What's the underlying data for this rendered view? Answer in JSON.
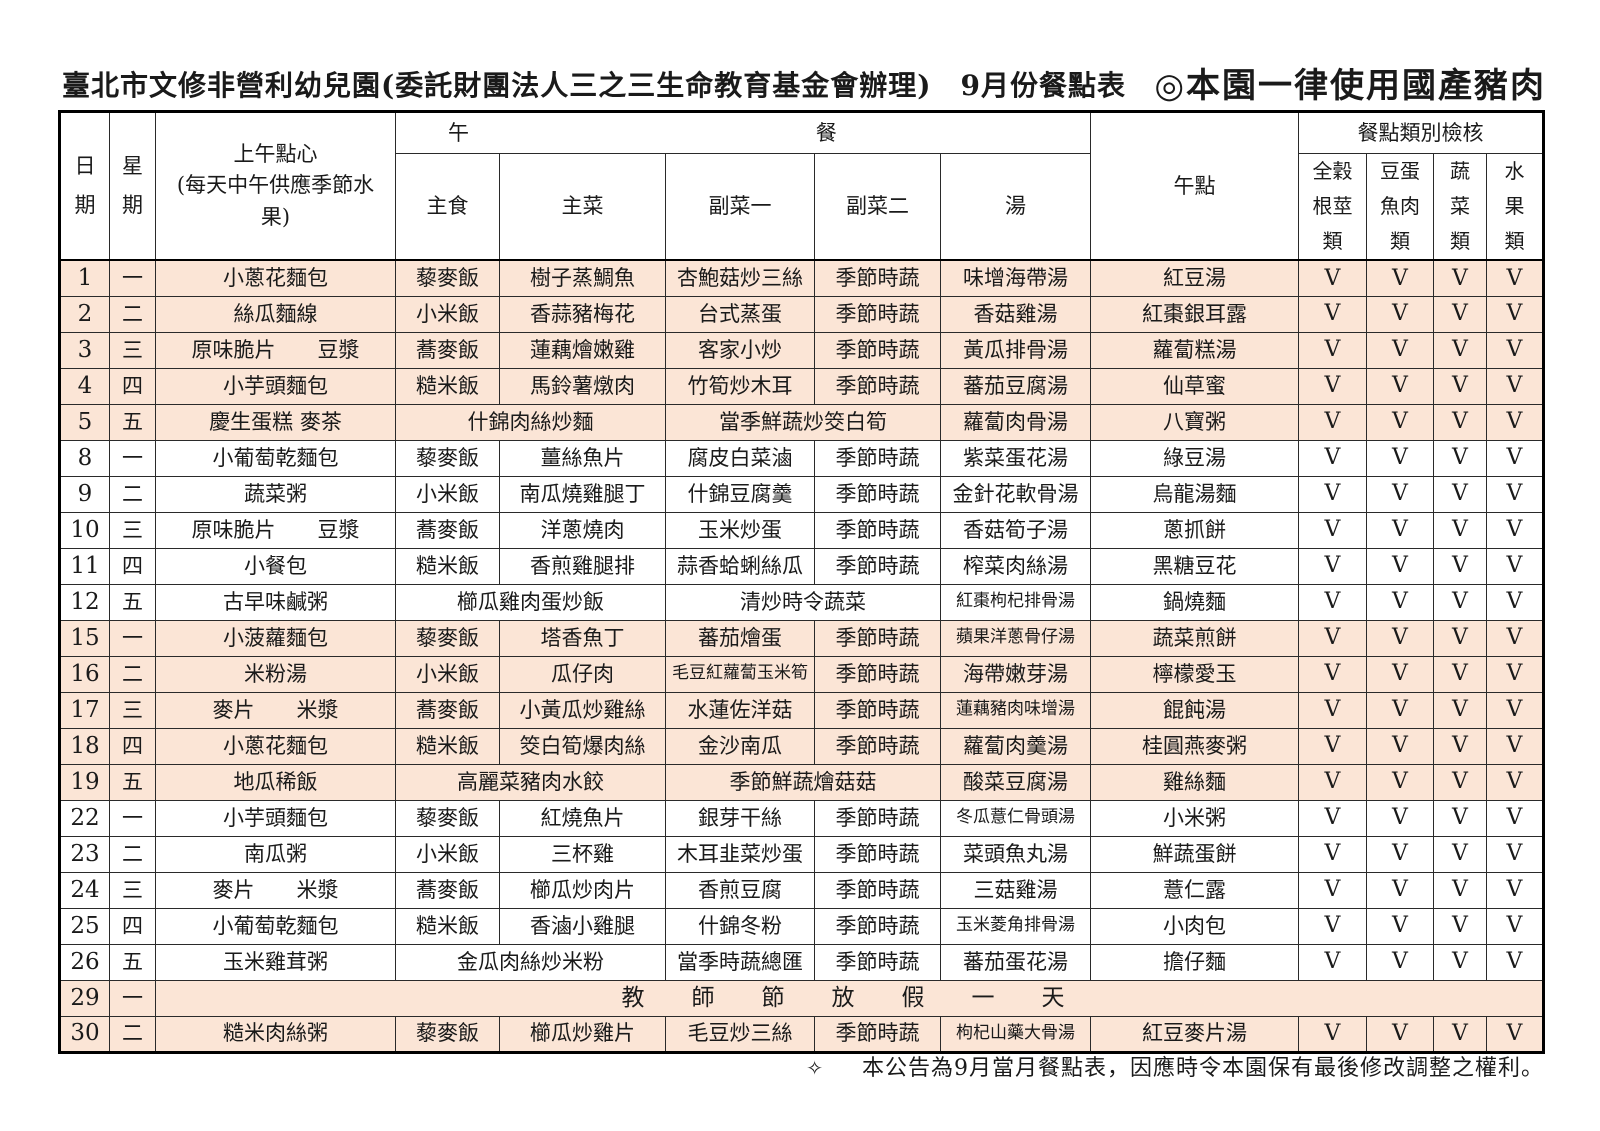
{
  "page": {
    "title_left": "臺北市文修非營利幼兒園(委託財團法人三之三生命教育基金會辦理)　9月份餐點表",
    "title_right": "◎本園一律使用國產豬肉",
    "footer_marker": "✧",
    "footer_note": "本公告為9月當月餐點表，因應時令本園保有最後修改調整之權利。"
  },
  "header": {
    "date": "日期",
    "weekday": "星期",
    "snack_line1": "上午點心",
    "snack_line2": "(每天中午供應季節水果)",
    "lunch_char1": "午",
    "lunch_char2": "餐",
    "staple": "主食",
    "main": "主菜",
    "side1": "副菜一",
    "side2": "副菜二",
    "soup": "湯",
    "dessert": "午點",
    "check_group": "餐點類別檢核",
    "check_cols": [
      "全穀根莖類",
      "豆蛋魚肉類",
      "蔬菜類",
      "水果類"
    ]
  },
  "colors": {
    "shade": "#fbe5d6",
    "border": "#2a2a2a"
  },
  "rows": [
    {
      "date": "1",
      "weekday": "一",
      "shade": true,
      "merge": "none",
      "snack": "小蔥花麵包",
      "staple": "藜麥飯",
      "main": "樹子蒸鯛魚",
      "side1": "杏鮑菇炒三絲",
      "side2": "季節時蔬",
      "soup": "味增海帶湯",
      "dessert": "紅豆湯",
      "checks": [
        "V",
        "V",
        "V",
        "V"
      ]
    },
    {
      "date": "2",
      "weekday": "二",
      "shade": true,
      "merge": "none",
      "snack": "絲瓜麵線",
      "staple": "小米飯",
      "main": "香蒜豬梅花",
      "side1": "台式蒸蛋",
      "side2": "季節時蔬",
      "soup": "香菇雞湯",
      "dessert": "紅棗銀耳露",
      "checks": [
        "V",
        "V",
        "V",
        "V"
      ]
    },
    {
      "date": "3",
      "weekday": "三",
      "shade": true,
      "merge": "none",
      "snack": "原味脆片　　豆漿",
      "staple": "蕎麥飯",
      "main": "蓮藕燴嫩雞",
      "side1": "客家小炒",
      "side2": "季節時蔬",
      "soup": "黃瓜排骨湯",
      "dessert": "蘿蔔糕湯",
      "checks": [
        "V",
        "V",
        "V",
        "V"
      ]
    },
    {
      "date": "4",
      "weekday": "四",
      "shade": true,
      "merge": "none",
      "snack": "小芋頭麵包",
      "staple": "糙米飯",
      "main": "馬鈴薯燉肉",
      "side1": "竹筍炒木耳",
      "side2": "季節時蔬",
      "soup": "蕃茄豆腐湯",
      "dessert": "仙草蜜",
      "checks": [
        "V",
        "V",
        "V",
        "V"
      ]
    },
    {
      "date": "5",
      "weekday": "五",
      "shade": true,
      "merge": "lunch_sides",
      "snack": "慶生蛋糕 麥茶",
      "main": "什錦肉絲炒麵",
      "side1": "當季鮮蔬炒筊白筍",
      "soup": "蘿蔔肉骨湯",
      "dessert": "八寶粥",
      "checks": [
        "V",
        "V",
        "V",
        "V"
      ]
    },
    {
      "date": "8",
      "weekday": "一",
      "shade": false,
      "merge": "none",
      "snack": "小葡萄乾麵包",
      "staple": "藜麥飯",
      "main": "薑絲魚片",
      "side1": "腐皮白菜滷",
      "side2": "季節時蔬",
      "soup": "紫菜蛋花湯",
      "dessert": "綠豆湯",
      "checks": [
        "V",
        "V",
        "V",
        "V"
      ]
    },
    {
      "date": "9",
      "weekday": "二",
      "shade": false,
      "merge": "none",
      "snack": "蔬菜粥",
      "staple": "小米飯",
      "main": "南瓜燒雞腿丁",
      "side1": "什錦豆腐羹",
      "side2": "季節時蔬",
      "soup": "金針花軟骨湯",
      "dessert": "烏龍湯麵",
      "checks": [
        "V",
        "V",
        "V",
        "V"
      ]
    },
    {
      "date": "10",
      "weekday": "三",
      "shade": false,
      "merge": "none",
      "snack": "原味脆片　　豆漿",
      "staple": "蕎麥飯",
      "main": "洋蔥燒肉",
      "side1": "玉米炒蛋",
      "side2": "季節時蔬",
      "soup": "香菇筍子湯",
      "dessert": "蔥抓餅",
      "checks": [
        "V",
        "V",
        "V",
        "V"
      ]
    },
    {
      "date": "11",
      "weekday": "四",
      "shade": false,
      "merge": "none",
      "snack": "小餐包",
      "staple": "糙米飯",
      "main": "香煎雞腿排",
      "side1": "蒜香蛤蜊絲瓜",
      "side2": "季節時蔬",
      "soup": "榨菜肉絲湯",
      "dessert": "黑糖豆花",
      "checks": [
        "V",
        "V",
        "V",
        "V"
      ]
    },
    {
      "date": "12",
      "weekday": "五",
      "shade": false,
      "merge": "lunch_sides",
      "snack": "古早味鹹粥",
      "main": "櫛瓜雞肉蛋炒飯",
      "side1": "清炒時令蔬菜",
      "soup": "紅棗枸杞排骨湯",
      "dessert": "鍋燒麵",
      "checks": [
        "V",
        "V",
        "V",
        "V"
      ]
    },
    {
      "date": "15",
      "weekday": "一",
      "shade": true,
      "merge": "none",
      "snack": "小菠蘿麵包",
      "staple": "藜麥飯",
      "main": "塔香魚丁",
      "side1": "蕃茄燴蛋",
      "side2": "季節時蔬",
      "soup": "蘋果洋蔥骨仔湯",
      "dessert": "蔬菜煎餅",
      "checks": [
        "V",
        "V",
        "V",
        "V"
      ]
    },
    {
      "date": "16",
      "weekday": "二",
      "shade": true,
      "merge": "none",
      "snack": "米粉湯",
      "staple": "小米飯",
      "main": "瓜仔肉",
      "side1": "毛豆紅蘿蔔玉米筍",
      "side2": "季節時蔬",
      "soup": "海帶嫩芽湯",
      "dessert": "檸檬愛玉",
      "checks": [
        "V",
        "V",
        "V",
        "V"
      ]
    },
    {
      "date": "17",
      "weekday": "三",
      "shade": true,
      "merge": "none",
      "snack": "麥片　　米漿",
      "staple": "蕎麥飯",
      "main": "小黃瓜炒雞絲",
      "side1": "水蓮佐洋菇",
      "side2": "季節時蔬",
      "soup": "蓮藕豬肉味增湯",
      "dessert": "餛飩湯",
      "checks": [
        "V",
        "V",
        "V",
        "V"
      ]
    },
    {
      "date": "18",
      "weekday": "四",
      "shade": true,
      "merge": "none",
      "snack": "小蔥花麵包",
      "staple": "糙米飯",
      "main": "筊白筍爆肉絲",
      "side1": "金沙南瓜",
      "side2": "季節時蔬",
      "soup": "蘿蔔肉羹湯",
      "dessert": "桂圓燕麥粥",
      "checks": [
        "V",
        "V",
        "V",
        "V"
      ]
    },
    {
      "date": "19",
      "weekday": "五",
      "shade": true,
      "merge": "lunch_sides",
      "snack": "地瓜稀飯",
      "main": "高麗菜豬肉水餃",
      "side1": "季節鮮蔬燴菇菇",
      "soup": "酸菜豆腐湯",
      "dessert": "雞絲麵",
      "checks": [
        "V",
        "V",
        "V",
        "V"
      ]
    },
    {
      "date": "22",
      "weekday": "一",
      "shade": false,
      "merge": "none",
      "snack": "小芋頭麵包",
      "staple": "藜麥飯",
      "main": "紅燒魚片",
      "side1": "銀芽干絲",
      "side2": "季節時蔬",
      "soup": "冬瓜薏仁骨頭湯",
      "dessert": "小米粥",
      "checks": [
        "V",
        "V",
        "V",
        "V"
      ]
    },
    {
      "date": "23",
      "weekday": "二",
      "shade": false,
      "merge": "none",
      "snack": "南瓜粥",
      "staple": "小米飯",
      "main": "三杯雞",
      "side1": "木耳韭菜炒蛋",
      "side2": "季節時蔬",
      "soup": "菜頭魚丸湯",
      "dessert": "鮮蔬蛋餅",
      "checks": [
        "V",
        "V",
        "V",
        "V"
      ]
    },
    {
      "date": "24",
      "weekday": "三",
      "shade": false,
      "merge": "none",
      "snack": "麥片　　米漿",
      "staple": "蕎麥飯",
      "main": "櫛瓜炒肉片",
      "side1": "香煎豆腐",
      "side2": "季節時蔬",
      "soup": "三菇雞湯",
      "dessert": "薏仁露",
      "checks": [
        "V",
        "V",
        "V",
        "V"
      ]
    },
    {
      "date": "25",
      "weekday": "四",
      "shade": false,
      "merge": "none",
      "snack": "小葡萄乾麵包",
      "staple": "糙米飯",
      "main": "香滷小雞腿",
      "side1": "什錦冬粉",
      "side2": "季節時蔬",
      "soup": "玉米菱角排骨湯",
      "dessert": "小肉包",
      "checks": [
        "V",
        "V",
        "V",
        "V"
      ]
    },
    {
      "date": "26",
      "weekday": "五",
      "shade": false,
      "merge": "lunch",
      "snack": "玉米雞茸粥",
      "main": "金瓜肉絲炒米粉",
      "side1": "當季時蔬總匯",
      "side2": "季節時蔬",
      "soup": "蕃茄蛋花湯",
      "dessert": "擔仔麵",
      "checks": [
        "V",
        "V",
        "V",
        "V"
      ]
    },
    {
      "date": "29",
      "weekday": "一",
      "shade": true,
      "merge": "holiday",
      "holiday": "教　師　節　放　假　一　天"
    },
    {
      "date": "30",
      "weekday": "二",
      "shade": true,
      "merge": "none",
      "snack": "糙米肉絲粥",
      "staple": "藜麥飯",
      "main": "櫛瓜炒雞片",
      "side1": "毛豆炒三絲",
      "side2": "季節時蔬",
      "soup": "枸杞山藥大骨湯",
      "dessert": "紅豆麥片湯",
      "checks": [
        "V",
        "V",
        "V",
        "V"
      ]
    }
  ]
}
